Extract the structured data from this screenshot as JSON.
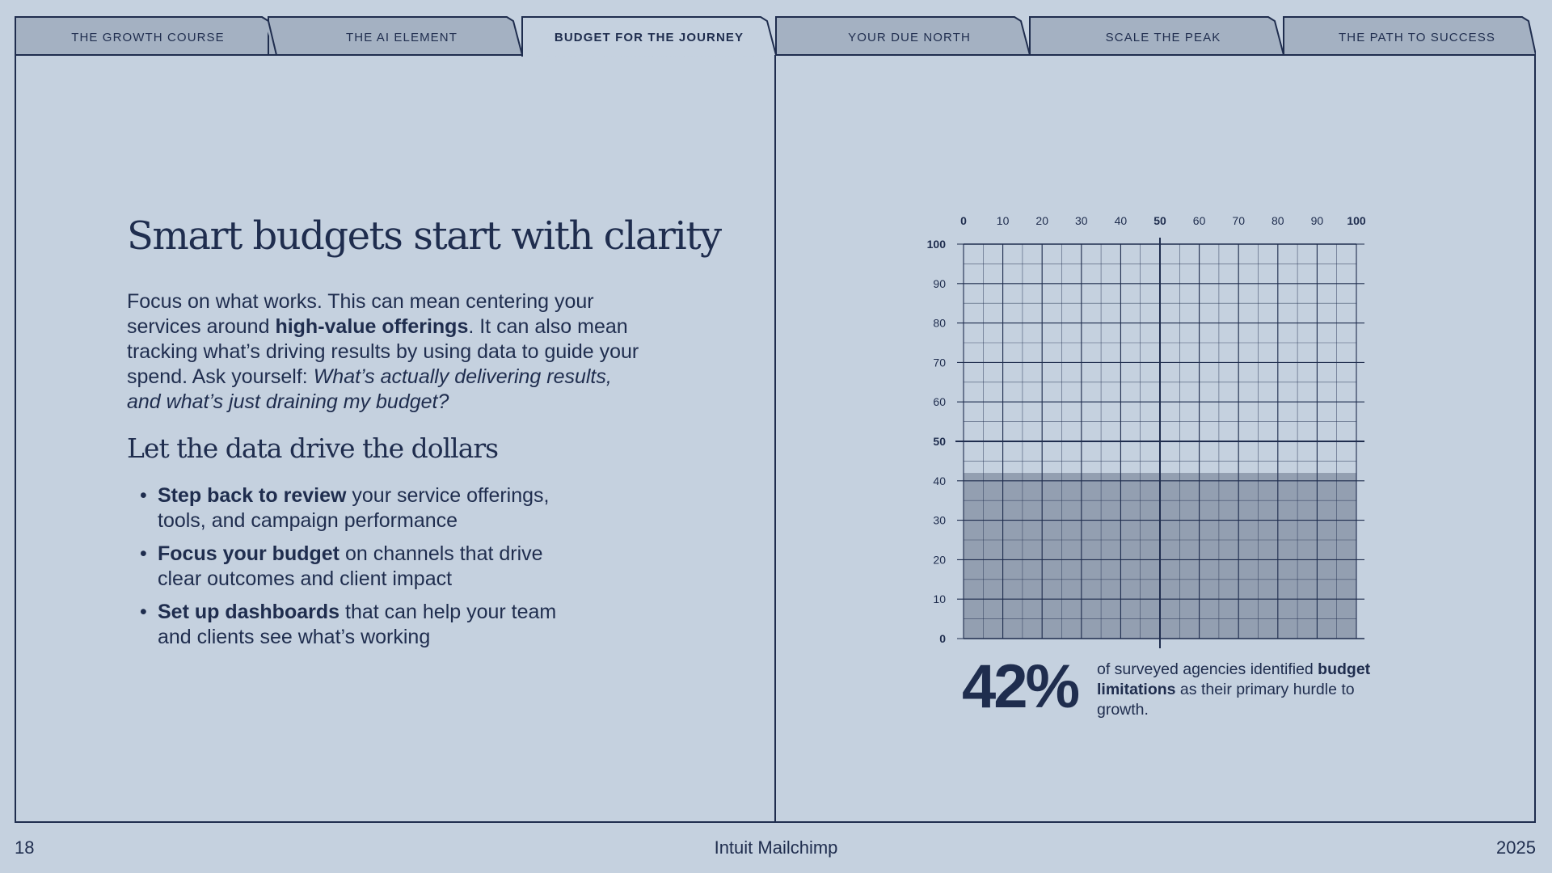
{
  "tabs": [
    {
      "label": "THE GROWTH COURSE",
      "active": false
    },
    {
      "label": "THE AI ELEMENT",
      "active": false
    },
    {
      "label": "BUDGET FOR THE JOURNEY",
      "active": true
    },
    {
      "label": "YOUR DUE NORTH",
      "active": false
    },
    {
      "label": "SCALE THE PEAK",
      "active": false
    },
    {
      "label": "THE PATH TO SUCCESS",
      "active": false
    }
  ],
  "left": {
    "title": "Smart budgets start with clarity",
    "intro_1": "Focus on what works. This can mean centering your services around ",
    "intro_bold": "high-value offerings",
    "intro_2": ". It can also mean tracking what’s driving results by using data to guide your spend. Ask yourself: ",
    "intro_italic": "What’s actually delivering results, and what’s just draining my budget?",
    "subtitle": "Let the data drive the dollars",
    "bullets": [
      {
        "bold": "Step back to review",
        "text": " your service offerings, tools, and campaign performance"
      },
      {
        "bold": "Focus your budget",
        "text": " on channels that drive clear outcomes and client impact"
      },
      {
        "bold": "Set up dashboards",
        "text": " that can help your team and clients see what’s working"
      }
    ]
  },
  "chart_data": {
    "type": "area",
    "x_ticks": [
      0,
      10,
      20,
      30,
      40,
      50,
      60,
      70,
      80,
      90,
      100
    ],
    "y_ticks": [
      0,
      10,
      20,
      30,
      40,
      50,
      60,
      70,
      80,
      90,
      100
    ],
    "xlim": [
      0,
      100
    ],
    "ylim": [
      0,
      100
    ],
    "fill_value": 42,
    "grid": true,
    "fill_color": "#939fb1"
  },
  "stat": {
    "value": "42%",
    "text_1": "of surveyed agencies identified ",
    "text_bold": "budget limitations",
    "text_2": " as their primary hurdle to growth."
  },
  "footer": {
    "page": "18",
    "brand": "Intuit Mailchimp",
    "year": "2025"
  },
  "colors": {
    "background": "#c5d1df",
    "ink": "#1f2d4e",
    "tab_inactive": "#a4b1c2"
  }
}
